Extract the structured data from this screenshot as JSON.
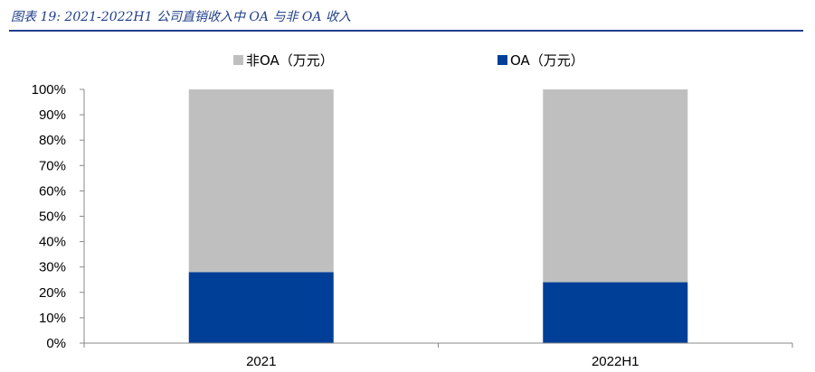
{
  "header": {
    "title": "图表 19:  2021-2022H1 公司直销收入中 OA 与非 OA 收入"
  },
  "colors": {
    "oa": "#003f98",
    "non_oa": "#bfbfbf",
    "accent": "#1f3e8c"
  },
  "chart_data": {
    "type": "bar",
    "stacked": true,
    "categories": [
      "2021",
      "2022H1"
    ],
    "series": [
      {
        "name": "OA（万元）",
        "values": [
          28,
          24
        ]
      },
      {
        "name": "非OA（万元）",
        "values": [
          72,
          76
        ]
      }
    ],
    "yticks": [
      "0%",
      "10%",
      "20%",
      "30%",
      "40%",
      "50%",
      "60%",
      "70%",
      "80%",
      "90%",
      "100%"
    ],
    "ylim": [
      0,
      100
    ],
    "legend_order": [
      "非OA（万元）",
      "OA（万元）"
    ],
    "legend": "top",
    "grid": false
  }
}
